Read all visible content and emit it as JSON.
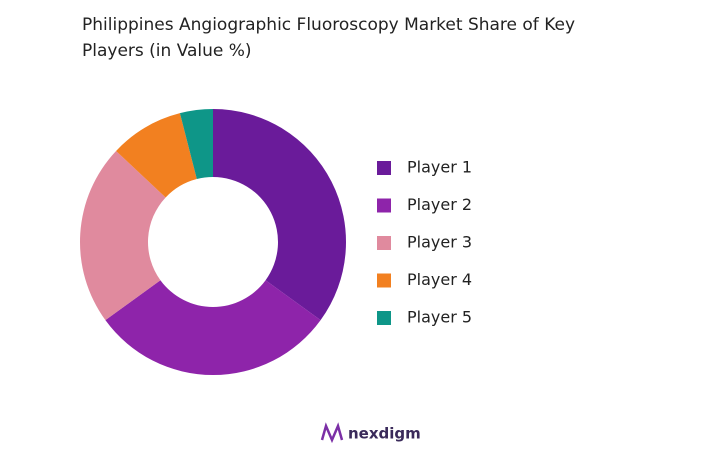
{
  "chart_data": {
    "type": "donut",
    "title": "Philippines Angiographic Fluoroscopy  Market Share of Key Players (in Value %)",
    "categories": [
      "Player 1",
      "Player 2",
      "Player 3",
      "Player 4",
      "Player 5"
    ],
    "values": [
      35,
      30,
      22,
      9,
      4
    ],
    "colors": [
      "#6a1b9a",
      "#8e24aa",
      "#e08a9e",
      "#f28020",
      "#0e9688"
    ],
    "legend": "right"
  },
  "logo": {
    "text": "nexdigm"
  }
}
